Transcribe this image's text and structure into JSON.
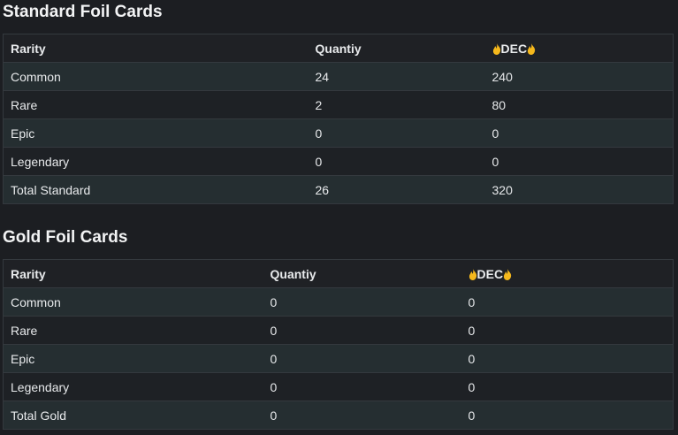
{
  "sections": [
    {
      "title": "Standard Foil Cards",
      "table": {
        "header": [
          "Rarity",
          "Quantiy",
          "DEC"
        ],
        "rows": [
          [
            "Common",
            24,
            240
          ],
          [
            "Rare",
            2,
            80
          ],
          [
            "Epic",
            0,
            0
          ],
          [
            "Legendary",
            0,
            0
          ],
          [
            "Total Standard",
            26,
            320
          ]
        ]
      }
    },
    {
      "title": "Gold Foil Cards",
      "table": {
        "header": [
          "Rarity",
          "Quantiy",
          "DEC"
        ],
        "rows": [
          [
            "Common",
            0,
            0
          ],
          [
            "Rare",
            0,
            0
          ],
          [
            "Epic",
            0,
            0
          ],
          [
            "Legendary",
            0,
            0
          ],
          [
            "Total Gold",
            0,
            0
          ]
        ]
      }
    }
  ]
}
